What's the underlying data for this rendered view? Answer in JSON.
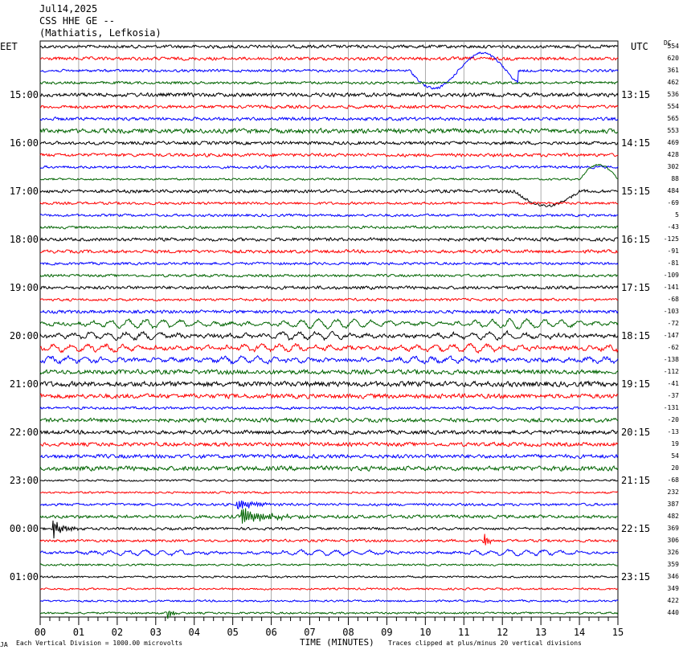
{
  "header": {
    "date": "Jul14,2025",
    "station": "CSS HHE GE --",
    "location": "(Mathiatis, Lefkosia)"
  },
  "left_tz": "EET",
  "right_tz": "UTC",
  "dc_label": "DC",
  "footer": {
    "left_mark": "JA",
    "scale_note": "Each Vertical Division = 1000.00 microvolts",
    "xlabel": "TIME (MINUTES)",
    "clip_note": "Traces clipped at plus/minus 20 vertical divisions"
  },
  "colors": {
    "trace_cycle": [
      "#000000",
      "#ff0000",
      "#0000ff",
      "#006400"
    ],
    "grid": "#888888"
  },
  "chart_data": {
    "type": "line",
    "title": "",
    "xlabel": "TIME (MINUTES)",
    "ylabel": "",
    "xlim": [
      0,
      15
    ],
    "x_ticks": [
      "00",
      "01",
      "02",
      "03",
      "04",
      "05",
      "06",
      "07",
      "08",
      "09",
      "10",
      "11",
      "12",
      "13",
      "14",
      "15"
    ],
    "rows_per_hour": 4,
    "left_hour_labels": [
      "15:00",
      "16:00",
      "17:00",
      "18:00",
      "19:00",
      "20:00",
      "21:00",
      "22:00",
      "23:00",
      "00:00",
      "01:00"
    ],
    "right_hour_labels": [
      "13:15",
      "14:15",
      "15:15",
      "16:15",
      "17:15",
      "18:15",
      "19:15",
      "20:15",
      "21:15",
      "22:15",
      "23:15"
    ],
    "hour_label_first_row": 4,
    "dc_offsets": [
      554,
      620,
      361,
      462,
      536,
      554,
      565,
      553,
      469,
      428,
      302,
      88,
      484,
      -69,
      5,
      -43,
      -125,
      -91,
      -81,
      -109,
      -141,
      -68,
      -103,
      -72,
      -147,
      -62,
      -138,
      -112,
      -41,
      -37,
      -131,
      -20,
      -13,
      19,
      54,
      20,
      -68,
      232,
      387,
      482,
      369,
      306,
      326,
      359,
      346,
      349,
      422,
      440
    ],
    "series": [
      {
        "row": 0,
        "noise": 2.5
      },
      {
        "row": 1,
        "noise": 2.5
      },
      {
        "row": 2,
        "noise": 2,
        "events": [
          {
            "type": "wave",
            "start": 9.6,
            "end": 12.4,
            "amp": 22,
            "period": 2.5
          }
        ]
      },
      {
        "row": 3,
        "noise": 2
      },
      {
        "row": 4,
        "noise": 3
      },
      {
        "row": 5,
        "noise": 2.5
      },
      {
        "row": 6,
        "noise": 2.5
      },
      {
        "row": 7,
        "noise": 3.5
      },
      {
        "row": 8,
        "noise": 2.5
      },
      {
        "row": 9,
        "noise": 2.5
      },
      {
        "row": 10,
        "noise": 2
      },
      {
        "row": 11,
        "noise": 1.5,
        "events": [
          {
            "type": "wave",
            "start": 14.0,
            "end": 15.0,
            "amp": -18,
            "period": 2
          }
        ]
      },
      {
        "row": 12,
        "noise": 2.5,
        "events": [
          {
            "type": "wave",
            "start": 12.3,
            "end": 14.0,
            "amp": 18,
            "period": 3.4
          }
        ]
      },
      {
        "row": 13,
        "noise": 2
      },
      {
        "row": 14,
        "noise": 2
      },
      {
        "row": 15,
        "noise": 2
      },
      {
        "row": 16,
        "noise": 2.5
      },
      {
        "row": 17,
        "noise": 2.5
      },
      {
        "row": 18,
        "noise": 2
      },
      {
        "row": 19,
        "noise": 2
      },
      {
        "row": 20,
        "noise": 2.5
      },
      {
        "row": 21,
        "noise": 2
      },
      {
        "row": 22,
        "noise": 2.5
      },
      {
        "row": 23,
        "noise": 2.5,
        "events": [
          {
            "type": "swell",
            "amp": 5
          }
        ]
      },
      {
        "row": 24,
        "noise": 3,
        "events": [
          {
            "type": "swell",
            "amp": 4
          }
        ]
      },
      {
        "row": 25,
        "noise": 3,
        "events": [
          {
            "type": "swell",
            "amp": 4
          }
        ]
      },
      {
        "row": 26,
        "noise": 3,
        "events": [
          {
            "type": "swell",
            "amp": 3
          }
        ]
      },
      {
        "row": 27,
        "noise": 3.5
      },
      {
        "row": 28,
        "noise": 4
      },
      {
        "row": 29,
        "noise": 3.5
      },
      {
        "row": 30,
        "noise": 2
      },
      {
        "row": 31,
        "noise": 3
      },
      {
        "row": 32,
        "noise": 3
      },
      {
        "row": 33,
        "noise": 3
      },
      {
        "row": 34,
        "noise": 3
      },
      {
        "row": 35,
        "noise": 3.5
      },
      {
        "row": 36,
        "noise": 1.5
      },
      {
        "row": 37,
        "noise": 1.5
      },
      {
        "row": 38,
        "noise": 2,
        "events": [
          {
            "type": "burst",
            "start": 5.1,
            "end": 6.3,
            "amp": 8
          }
        ]
      },
      {
        "row": 39,
        "noise": 2.5,
        "events": [
          {
            "type": "burst",
            "start": 5.2,
            "end": 7.0,
            "amp": 10
          }
        ]
      },
      {
        "row": 40,
        "noise": 2,
        "events": [
          {
            "type": "burst",
            "start": 0.3,
            "end": 1.2,
            "amp": 10
          }
        ]
      },
      {
        "row": 41,
        "noise": 2,
        "events": [
          {
            "type": "burst",
            "start": 11.5,
            "end": 11.9,
            "amp": 8
          }
        ]
      },
      {
        "row": 42,
        "noise": 2,
        "events": [
          {
            "type": "swell",
            "amp": 3
          }
        ]
      },
      {
        "row": 43,
        "noise": 1.5
      },
      {
        "row": 44,
        "noise": 1.5
      },
      {
        "row": 45,
        "noise": 1.5
      },
      {
        "row": 46,
        "noise": 1.5
      },
      {
        "row": 47,
        "noise": 1.5,
        "events": [
          {
            "type": "burst",
            "start": 3.3,
            "end": 3.7,
            "amp": 6
          }
        ]
      }
    ]
  }
}
